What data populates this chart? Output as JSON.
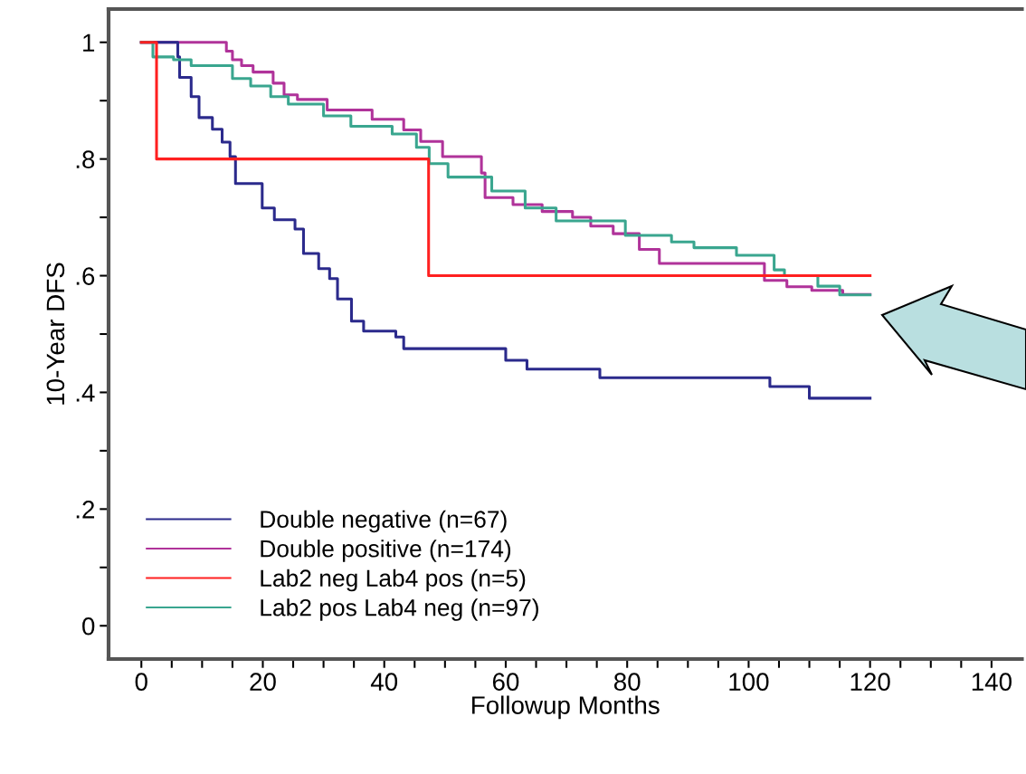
{
  "chart_data": {
    "type": "step",
    "xlabel": "Followup Months",
    "ylabel": "10-Year DFS",
    "series": [
      {
        "name": "Double negative (n=67)",
        "color": "#2b2a8c",
        "x": [
          0,
          6,
          6.3,
          8.2,
          9.5,
          11.7,
          13.3,
          14.6,
          15.5,
          19.9,
          21.9,
          25.3,
          26.7,
          29.2,
          31,
          32.3,
          34.6,
          36.6,
          41.9,
          43.2,
          60,
          63.5,
          75.5,
          103.5,
          110,
          120
        ],
        "values": [
          1,
          0.975,
          0.94,
          0.907,
          0.871,
          0.851,
          0.829,
          0.804,
          0.758,
          0.716,
          0.696,
          0.68,
          0.638,
          0.612,
          0.595,
          0.56,
          0.522,
          0.505,
          0.495,
          0.475,
          0.455,
          0.44,
          0.425,
          0.41,
          0.39,
          0.39
        ]
      },
      {
        "name": "Double positive (n=174)",
        "color": "#b0339a",
        "x": [
          0,
          14,
          15,
          16.5,
          18.4,
          21.7,
          23.5,
          25.7,
          30.6,
          38,
          43.2,
          46,
          49.6,
          56,
          56.6,
          61.2,
          66,
          71,
          74,
          77.7,
          82,
          85.3,
          102.6,
          106.3,
          110.4,
          115.5,
          120
        ],
        "values": [
          1,
          0.985,
          0.97,
          0.96,
          0.949,
          0.93,
          0.91,
          0.902,
          0.884,
          0.868,
          0.85,
          0.83,
          0.804,
          0.776,
          0.734,
          0.722,
          0.71,
          0.7,
          0.685,
          0.672,
          0.645,
          0.621,
          0.592,
          0.581,
          0.575,
          0.568,
          0.568
        ]
      },
      {
        "name": "Lab2 neg Lab4 pos (n=5)",
        "color": "#ff2020",
        "x": [
          0,
          2.5,
          47.3,
          120
        ],
        "values": [
          1,
          0.8,
          0.6,
          0.6
        ]
      },
      {
        "name": "Lab2 pos Lab4 neg (n=97)",
        "color": "#3aa68f",
        "x": [
          0,
          1.9,
          5.3,
          8.2,
          15,
          18,
          21.3,
          24.2,
          30,
          34.5,
          41.3,
          45.3,
          47.4,
          50.5,
          57.7,
          63.2,
          68.3,
          79.7,
          87.3,
          91,
          98,
          104.2,
          105.9,
          111.4,
          115,
          120
        ],
        "values": [
          1,
          0.975,
          0.97,
          0.96,
          0.938,
          0.925,
          0.907,
          0.894,
          0.874,
          0.856,
          0.843,
          0.82,
          0.792,
          0.769,
          0.745,
          0.716,
          0.694,
          0.669,
          0.658,
          0.648,
          0.635,
          0.61,
          0.6,
          0.582,
          0.567,
          0.567
        ]
      }
    ],
    "xlim": [
      -5.4,
      145
    ],
    "ylim": [
      -0.057,
      1.057
    ],
    "xticks": [
      0,
      {
        "value": 5,
        "label": null
      },
      {
        "value": 10,
        "label": null
      },
      {
        "value": 15,
        "label": null
      },
      20,
      {
        "value": 25,
        "label": null
      },
      {
        "value": 30,
        "label": null
      },
      {
        "value": 35,
        "label": null
      },
      40,
      {
        "value": 45,
        "label": null
      },
      {
        "value": 50,
        "label": null
      },
      {
        "value": 55,
        "label": null
      },
      60,
      {
        "value": 65,
        "label": null
      },
      {
        "value": 70,
        "label": null
      },
      {
        "value": 75,
        "label": null
      },
      80,
      {
        "value": 85,
        "label": null
      },
      {
        "value": 90,
        "label": null
      },
      {
        "value": 95,
        "label": null
      },
      100,
      {
        "value": 105,
        "label": null
      },
      {
        "value": 110,
        "label": null
      },
      {
        "value": 115,
        "label": null
      },
      120,
      {
        "value": 125,
        "label": null
      },
      {
        "value": 130,
        "label": null
      },
      {
        "value": 135,
        "label": null
      },
      140
    ],
    "yticks": [
      0,
      {
        "value": 0.1,
        "label": null
      },
      {
        "value": 0.2,
        "label": ".2"
      },
      {
        "value": 0.3,
        "label": null
      },
      {
        "value": 0.4,
        "label": ".4"
      },
      {
        "value": 0.5,
        "label": null
      },
      {
        "value": 0.6,
        "label": ".6"
      },
      {
        "value": 0.7,
        "label": null
      },
      {
        "value": 0.8,
        "label": ".8"
      },
      {
        "value": 0.9,
        "label": null
      },
      1
    ],
    "grid": false,
    "legend": "bottom left"
  }
}
